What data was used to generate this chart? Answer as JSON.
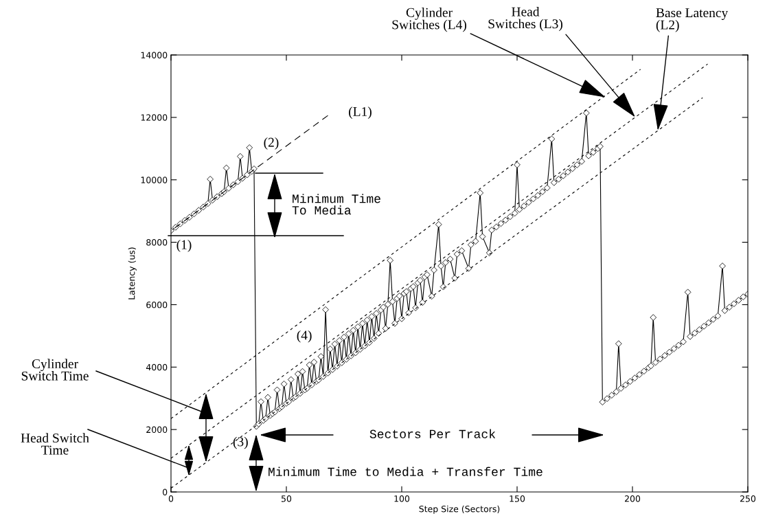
{
  "chart_data": {
    "type": "line",
    "xlabel": "Step Size (Sectors)",
    "ylabel": "Latency (us)",
    "xlim": [
      0,
      250
    ],
    "ylim": [
      0,
      14000
    ],
    "xticks": [
      0,
      50,
      100,
      150,
      200,
      250
    ],
    "yticks": [
      0,
      2000,
      4000,
      6000,
      8000,
      10000,
      12000,
      14000
    ],
    "series": [
      {
        "color": "#000000",
        "marker": "diamond",
        "line_style": "solid",
        "x": [
          0,
          2,
          4,
          6,
          8,
          10,
          12,
          14,
          16,
          17,
          18,
          20,
          22,
          23,
          24,
          25,
          27,
          29,
          30,
          31,
          33,
          34,
          35,
          36,
          37,
          38,
          39,
          40,
          41,
          42,
          43,
          44,
          45,
          46,
          47,
          48,
          49,
          50,
          51,
          52,
          53,
          54,
          55,
          56,
          57,
          58,
          59,
          60,
          61,
          62,
          63,
          64,
          65,
          66,
          67,
          68,
          69,
          70,
          71,
          72,
          73,
          74,
          75,
          76,
          77,
          78,
          79,
          80,
          81,
          82,
          83,
          84,
          85,
          86,
          87,
          88,
          89,
          90,
          91,
          92,
          93,
          94,
          95,
          96,
          97,
          98,
          99,
          100,
          101,
          102,
          103,
          104,
          105,
          106,
          107,
          108,
          109,
          110,
          111,
          113,
          114,
          116,
          117,
          118,
          119,
          121,
          123,
          124,
          126,
          129,
          130,
          132,
          134,
          135,
          138,
          139,
          141,
          143,
          145,
          147,
          149,
          150,
          151,
          153,
          155,
          157,
          159,
          161,
          163,
          165,
          166,
          168,
          170,
          172,
          174,
          176,
          178,
          180,
          181,
          183,
          185,
          186,
          187,
          189,
          191,
          193,
          194,
          195,
          197,
          199,
          201,
          203,
          205,
          207,
          208,
          209,
          210,
          212,
          214,
          216,
          218,
          220,
          222,
          224,
          225,
          227,
          229,
          231,
          233,
          235,
          237,
          239,
          240,
          242,
          244,
          246,
          248,
          250
        ],
        "values": [
          8370,
          8480,
          8590,
          8700,
          8800,
          8910,
          9020,
          9130,
          9240,
          10020,
          9350,
          9460,
          9560,
          9620,
          10380,
          9730,
          9840,
          9940,
          10750,
          10050,
          10160,
          11030,
          10270,
          10350,
          2100,
          2180,
          2890,
          2290,
          2350,
          3030,
          2450,
          2510,
          2560,
          3270,
          2670,
          2730,
          3460,
          2840,
          2890,
          3600,
          3000,
          3050,
          3780,
          3160,
          3860,
          3270,
          3320,
          4070,
          3430,
          4160,
          3540,
          3590,
          4340,
          3700,
          5840,
          3810,
          4580,
          3920,
          4740,
          4030,
          4850,
          4140,
          4960,
          4250,
          5070,
          4360,
          5180,
          4460,
          5290,
          4570,
          5400,
          4680,
          5510,
          4790,
          5620,
          4920,
          5720,
          5080,
          5830,
          5920,
          5240,
          6010,
          7420,
          6100,
          5400,
          6200,
          6280,
          5550,
          6360,
          6420,
          5740,
          6520,
          6580,
          5900,
          6700,
          6780,
          6070,
          6890,
          6960,
          6270,
          7110,
          8570,
          7240,
          6570,
          7350,
          7460,
          6850,
          7620,
          7730,
          7160,
          7920,
          8030,
          9580,
          8180,
          7660,
          8390,
          8490,
          8600,
          8710,
          8820,
          8930,
          10480,
          9050,
          9160,
          9280,
          9390,
          9500,
          9620,
          9740,
          11310,
          9910,
          10020,
          10130,
          10250,
          10360,
          10480,
          10590,
          12140,
          10770,
          10880,
          11000,
          11070,
          2880,
          2990,
          3100,
          3210,
          4750,
          3320,
          3430,
          3540,
          3650,
          3760,
          3870,
          3980,
          4040,
          5590,
          4150,
          4260,
          4370,
          4480,
          4590,
          4700,
          4810,
          6400,
          4980,
          5090,
          5200,
          5310,
          5420,
          5530,
          5640,
          7240,
          5810,
          5920,
          6030,
          6140,
          6250,
          6340
        ]
      },
      {
        "type": "line",
        "color": "#000000",
        "marker": "none",
        "line_style": "dashed",
        "x": [
          68,
          0
        ],
        "values": [
          12060,
          8370
        ]
      },
      {
        "type": "line",
        "color": "#000000",
        "marker": "none",
        "line_style": "dotted",
        "x": [
          0,
          230.4
        ],
        "values": [
          120,
          12630
        ]
      },
      {
        "type": "line",
        "color": "#000000",
        "marker": "none",
        "line_style": "dotted",
        "x": [
          0,
          232.6
        ],
        "values": [
          1080,
          13710
        ]
      },
      {
        "type": "line",
        "color": "#000000",
        "marker": "none",
        "line_style": "dotted",
        "x": [
          0,
          203.5
        ],
        "values": [
          2350,
          13540
        ]
      }
    ],
    "annotations": [
      {
        "text": "(1)",
        "x": 0,
        "y": 8370
      },
      {
        "text": "(2)",
        "x": 36,
        "y": 10350
      },
      {
        "text": "(3)",
        "x": 37,
        "y": 2100
      },
      {
        "text": "(4)",
        "x": 67,
        "y": 5840
      },
      {
        "text": "(L1)",
        "x": 68,
        "y": 12060
      },
      {
        "text": "Cylinder\nSwitches (L4)",
        "x": 188.4,
        "y": 12640
      },
      {
        "text": "Head\nSwitches (L3)",
        "x": 201.2,
        "y": 12005
      },
      {
        "text": "Base Latency\n(L2)",
        "x": 211,
        "y": 11577
      },
      "Minimum Time\nTo Media",
      "Cylinder\nSwitch Time",
      "Head Switch\nTime",
      "Sectors Per Track",
      "Minimum Time to Media + Transfer Time"
    ]
  }
}
